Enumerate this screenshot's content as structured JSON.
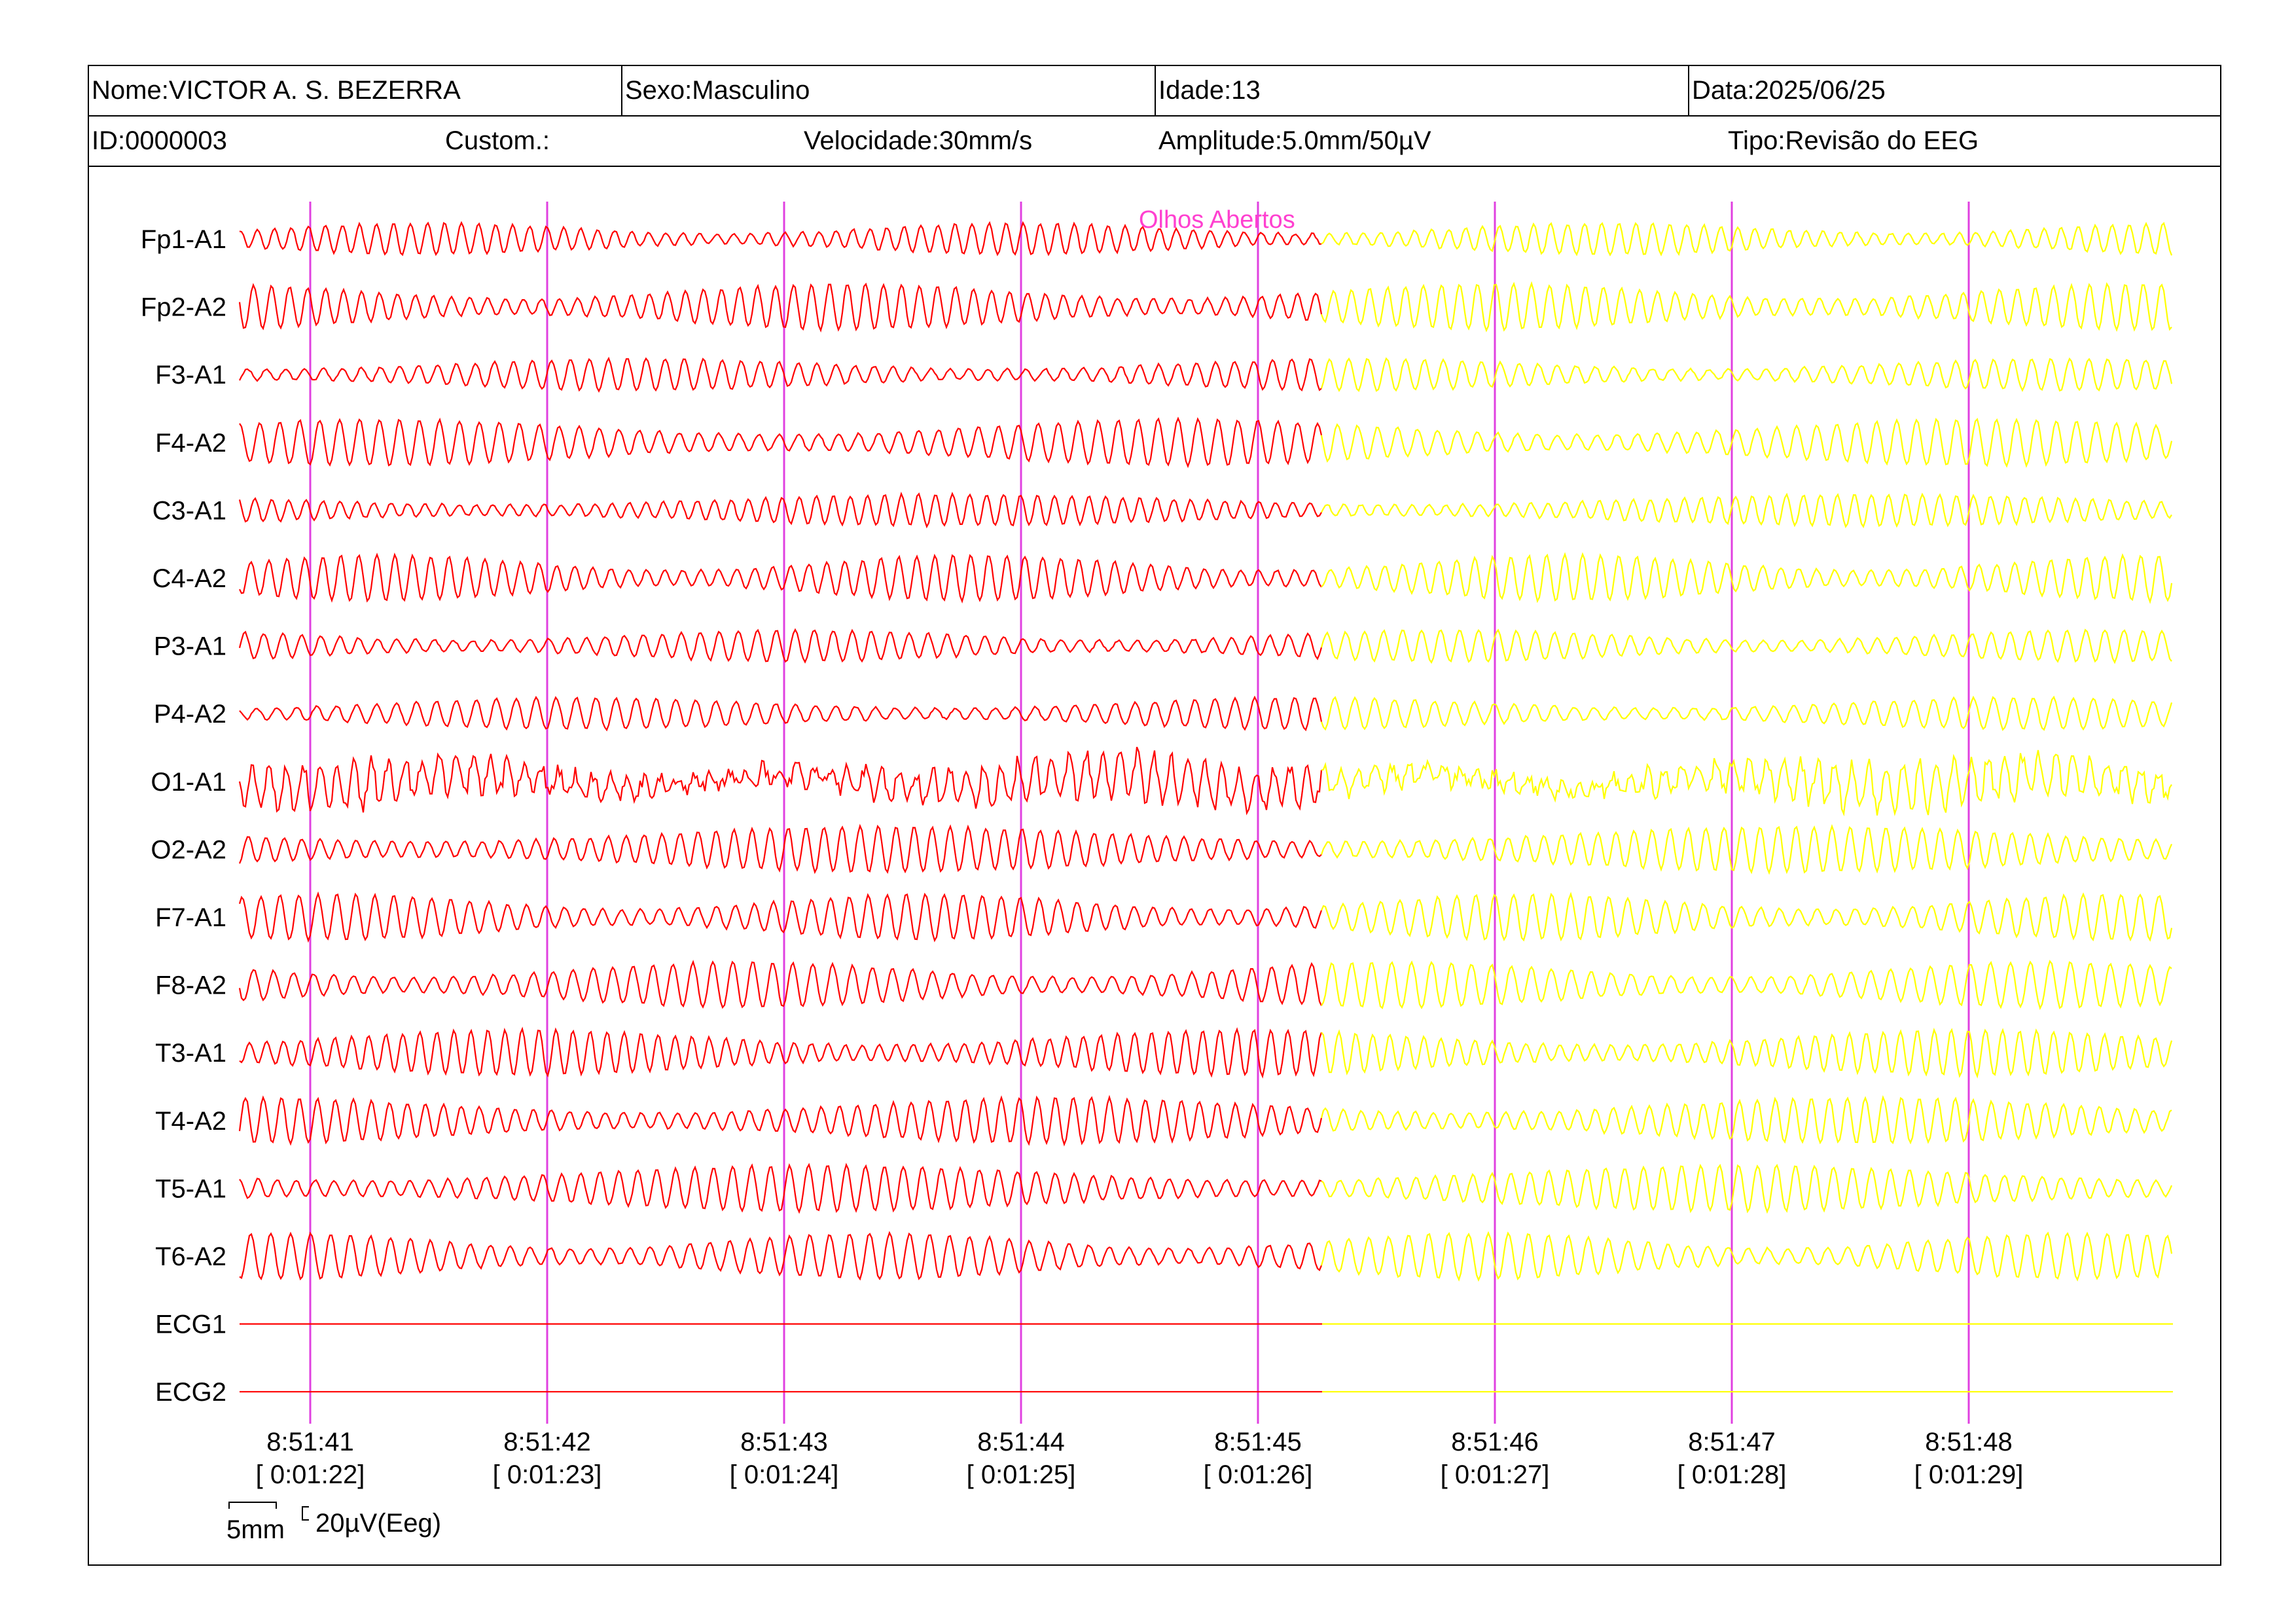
{
  "header": {
    "name": "Nome:VICTOR A. S. BEZERRA",
    "sex": "Sexo:Masculino",
    "age": "Idade:13",
    "date": "Data:2025/06/25",
    "id": "ID:0000003",
    "custom": "Custom.:",
    "speed": "Velocidade:30mm/s",
    "amplitude": "Amplitude:5.0mm/50µV",
    "type": "Tipo:Revisão do EEG"
  },
  "event_marker": {
    "label": "Olhos Abertos",
    "color": "#ff40d0"
  },
  "colors": {
    "trace_before": "#ff0000",
    "trace_after": "#ffff00",
    "second_markers": "#e040e0"
  },
  "channels": [
    "Fp1-A1",
    "Fp2-A2",
    "F3-A1",
    "F4-A2",
    "C3-A1",
    "C4-A2",
    "P3-A1",
    "P4-A2",
    "O1-A1",
    "O2-A2",
    "F7-A1",
    "F8-A2",
    "T3-A1",
    "T4-A2",
    "T5-A1",
    "T6-A2",
    "ECG1",
    "ECG2"
  ],
  "time_marks": [
    {
      "clock": "8:51:41",
      "elapsed": "[ 0:01:22]"
    },
    {
      "clock": "8:51:42",
      "elapsed": "[ 0:01:23]"
    },
    {
      "clock": "8:51:43",
      "elapsed": "[ 0:01:24]"
    },
    {
      "clock": "8:51:44",
      "elapsed": "[ 0:01:25]"
    },
    {
      "clock": "8:51:45",
      "elapsed": "[ 0:01:26]"
    },
    {
      "clock": "8:51:46",
      "elapsed": "[ 0:01:27]"
    },
    {
      "clock": "8:51:47",
      "elapsed": "[ 0:01:28]"
    },
    {
      "clock": "8:51:48",
      "elapsed": "[ 0:01:29]"
    }
  ],
  "scale": {
    "time": "5mm",
    "amplitude": "20µV(Eeg)"
  }
}
